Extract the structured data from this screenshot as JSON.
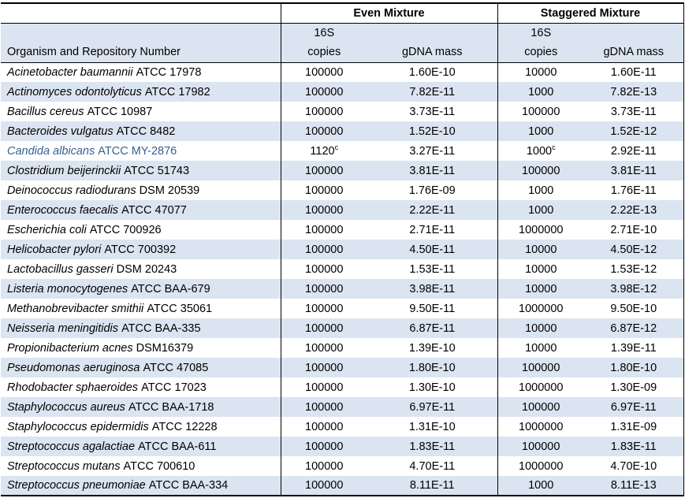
{
  "header": {
    "organism_col": "Organism and Repository Number",
    "groups": [
      {
        "label": "Even Mixture"
      },
      {
        "label": "Staggered Mixture"
      }
    ],
    "sub_top": "16S",
    "copies_label": "copies",
    "gdna_label": "gDNA mass"
  },
  "rows": [
    {
      "name": "Acinetobacter baumannii",
      "repo": "ATCC 17978",
      "even_copies": "100000",
      "even_mass": "1.60E-10",
      "stag_copies": "10000",
      "stag_mass": "1.60E-11"
    },
    {
      "name": "Actinomyces odontolyticus",
      "repo": "ATCC 17982",
      "even_copies": "100000",
      "even_mass": "7.82E-11",
      "stag_copies": "1000",
      "stag_mass": "7.82E-13"
    },
    {
      "name": "Bacillus cereus",
      "repo": "ATCC 10987",
      "even_copies": "100000",
      "even_mass": "3.73E-11",
      "stag_copies": "100000",
      "stag_mass": "3.73E-11"
    },
    {
      "name": "Bacteroides vulgatus",
      "repo": "ATCC 8482",
      "even_copies": "100000",
      "even_mass": "1.52E-10",
      "stag_copies": "1000",
      "stag_mass": "1.52E-12"
    },
    {
      "name": "Candida albicans",
      "repo": "ATCC MY-2876",
      "highlight": true,
      "even_copies": "1120",
      "even_copies_sup": "c",
      "even_mass": "3.27E-11",
      "stag_copies": "1000",
      "stag_copies_sup": "c",
      "stag_mass": "2.92E-11"
    },
    {
      "name": "Clostridium beijerinckii",
      "repo": "ATCC 51743",
      "even_copies": "100000",
      "even_mass": "3.81E-11",
      "stag_copies": "100000",
      "stag_mass": "3.81E-11"
    },
    {
      "name": "Deinococcus radiodurans",
      "repo": "DSM 20539",
      "even_copies": "100000",
      "even_mass": "1.76E-09",
      "stag_copies": "1000",
      "stag_mass": "1.76E-11"
    },
    {
      "name": "Enterococcus faecalis",
      "repo": "ATCC 47077",
      "even_copies": "100000",
      "even_mass": "2.22E-11",
      "stag_copies": "1000",
      "stag_mass": "2.22E-13"
    },
    {
      "name": "Escherichia coli",
      "repo": "ATCC 700926",
      "even_copies": "100000",
      "even_mass": "2.71E-11",
      "stag_copies": "1000000",
      "stag_mass": "2.71E-10"
    },
    {
      "name": "Helicobacter pylori",
      "repo": "ATCC 700392",
      "even_copies": "100000",
      "even_mass": "4.50E-11",
      "stag_copies": "10000",
      "stag_mass": "4.50E-12"
    },
    {
      "name": "Lactobacillus gasseri",
      "repo": "DSM 20243",
      "even_copies": "100000",
      "even_mass": "1.53E-11",
      "stag_copies": "10000",
      "stag_mass": "1.53E-12"
    },
    {
      "name": "Listeria monocytogenes",
      "repo": "ATCC BAA-679",
      "even_copies": "100000",
      "even_mass": "3.98E-11",
      "stag_copies": "10000",
      "stag_mass": "3.98E-12"
    },
    {
      "name": "Methanobrevibacter smithii",
      "repo": "ATCC 35061",
      "even_copies": "100000",
      "even_mass": "9.50E-11",
      "stag_copies": "1000000",
      "stag_mass": "9.50E-10"
    },
    {
      "name": "Neisseria meningitidis",
      "repo": "ATCC BAA-335",
      "even_copies": "100000",
      "even_mass": "6.87E-11",
      "stag_copies": "10000",
      "stag_mass": "6.87E-12"
    },
    {
      "name": "Propionibacterium acnes",
      "repo": "DSM16379",
      "even_copies": "100000",
      "even_mass": "1.39E-10",
      "stag_copies": "10000",
      "stag_mass": "1.39E-11"
    },
    {
      "name": "Pseudomonas aeruginosa",
      "repo": "ATCC 47085",
      "even_copies": "100000",
      "even_mass": "1.80E-10",
      "stag_copies": "100000",
      "stag_mass": "1.80E-10"
    },
    {
      "name": "Rhodobacter sphaeroides",
      "repo": "ATCC 17023",
      "even_copies": "100000",
      "even_mass": "1.30E-10",
      "stag_copies": "1000000",
      "stag_mass": "1.30E-09"
    },
    {
      "name": "Staphylococcus aureus",
      "repo": "ATCC BAA-1718",
      "even_copies": "100000",
      "even_mass": "6.97E-11",
      "stag_copies": "100000",
      "stag_mass": "6.97E-11"
    },
    {
      "name": "Staphylococcus epidermidis",
      "repo": "ATCC 12228",
      "even_copies": "100000",
      "even_mass": "1.31E-10",
      "stag_copies": "1000000",
      "stag_mass": "1.31E-09"
    },
    {
      "name": "Streptococcus agalactiae",
      "repo": "ATCC BAA-611",
      "even_copies": "100000",
      "even_mass": "1.83E-11",
      "stag_copies": "100000",
      "stag_mass": "1.83E-11"
    },
    {
      "name": "Streptococcus mutans",
      "repo": "ATCC 700610",
      "even_copies": "100000",
      "even_mass": "4.70E-11",
      "stag_copies": "1000000",
      "stag_mass": "4.70E-10"
    },
    {
      "name": "Streptococcus pneumoniae",
      "repo": "ATCC BAA-334",
      "even_copies": "100000",
      "even_mass": "8.11E-11",
      "stag_copies": "1000",
      "stag_mass": "8.11E-13"
    }
  ],
  "colors": {
    "stripe": "#dbe5f1",
    "highlight_text": "#366092",
    "border": "#000000"
  }
}
